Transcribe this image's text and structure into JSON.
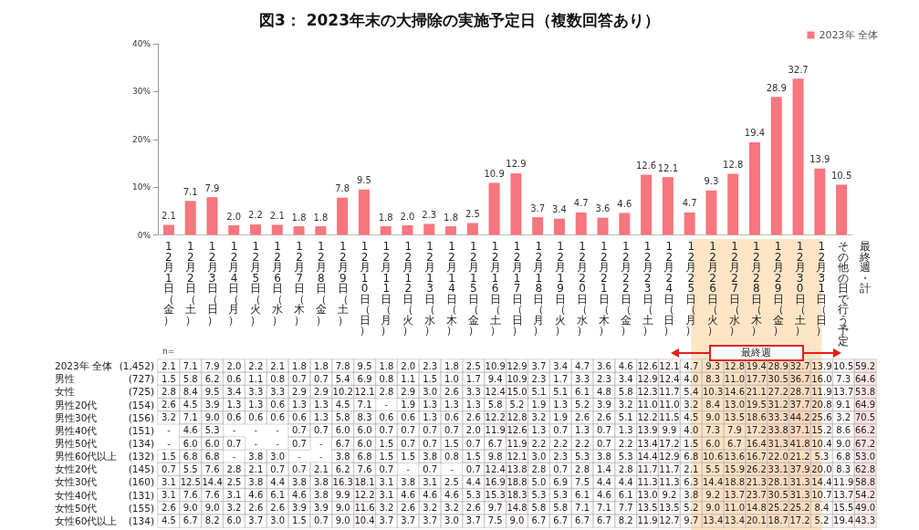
{
  "chart_data": [
    {
      "type": "bar",
      "title": "図3： 2023年末の大掃除の実施予定日（複数回答あり）",
      "categories": [
        null,
        null,
        null,
        null,
        null,
        null,
        null,
        null,
        null,
        null,
        null,
        null,
        null,
        null,
        null,
        null,
        null,
        null,
        null,
        null,
        null,
        null,
        null,
        null,
        null,
        null,
        null,
        null,
        null,
        null,
        null,
        null
      ],
      "series": [
        {
          "name": "2023年 全体",
          "color": "#f8767d",
          "values": [
            2.1,
            7.1,
            7.9,
            2.0,
            2.2,
            2.1,
            1.8,
            1.8,
            7.8,
            9.5,
            1.8,
            2.0,
            2.3,
            1.8,
            2.5,
            10.9,
            12.9,
            3.7,
            3.4,
            4.7,
            3.6,
            4.6,
            12.6,
            12.1,
            4.7,
            9.3,
            12.8,
            19.4,
            28.9,
            32.7,
            13.9,
            10.5
          ],
          "value_labels": [
            "2.1",
            "7.1",
            "7.9",
            "2.0",
            "2.2",
            "2.1",
            "1.8",
            "1.8",
            "7.8",
            "9.5",
            "1.8",
            "2.0",
            "2.3",
            "1.8",
            "2.5",
            "10.9",
            "12.9",
            "3.7",
            "3.4",
            "4.7",
            "3.6",
            "4.6",
            "12.6",
            "12.1",
            "4.7",
            "9.3",
            "12.8",
            "19.4",
            "28.9",
            "32.7",
            "13.9",
            "10.5"
          ]
        }
      ],
      "ylim": [
        0,
        40
      ],
      "yticks": [
        {
          "value": 0,
          "label": "0%"
        },
        {
          "value": 10,
          "label": "10%"
        },
        {
          "value": 20,
          "label": "20%"
        },
        {
          "value": 30,
          "label": "30%"
        },
        {
          "value": 40,
          "label": "40%"
        }
      ],
      "legend": "top right",
      "tick_labels": "y",
      "grid": false
    },
    {
      "type": "heatmap",
      "categories": [
        "12月1日（金）",
        "12月2日（土）",
        "12月3日（日）",
        "12月4日（月）",
        "12月5日（火）",
        "12月6日（水）",
        "12月7日（木）",
        "12月8日（金）",
        "12月9日（土）",
        "12月10日（日）",
        "12月11日（月）",
        "12月12日（火）",
        "12月13日（水）",
        "12月14日（木）",
        "12月15日（金）",
        "12月16日（土）",
        "12月17日（日）",
        "12月18日（月）",
        "12月19日（火）",
        "12月20日（水）",
        "12月21日（木）",
        "12月22日（金）",
        "12月23日（土）",
        "12月24日（日）",
        "12月25日（月）",
        "12月26日（火）",
        "12月27日（水）",
        "12月28日（木）",
        "12月29日（金）",
        "12月30日（土）",
        "12月31日（日）",
        "その他の日で行う予定",
        "最終週・計"
      ],
      "y_categories": [
        "2023年 全体",
        "男性",
        "女性",
        "男性20代",
        "男性30代",
        "男性40代",
        "男性50代",
        "男性60代以上",
        "女性20代",
        "女性30代",
        "女性40代",
        "女性50代",
        "女性60代以上"
      ],
      "y2_categories": [
        "(1,452)",
        "(727)",
        "(725)",
        "(154)",
        "(156)",
        "(151)",
        "(134)",
        "(132)",
        "(145)",
        "(160)",
        "(131)",
        "(155)",
        "(134)"
      ],
      "cells": [
        [
          2.1,
          7.1,
          7.9,
          2.0,
          2.2,
          2.1,
          1.8,
          1.8,
          7.8,
          9.5,
          1.8,
          2.0,
          2.3,
          1.8,
          2.5,
          10.9,
          12.9,
          3.7,
          3.4,
          4.7,
          3.6,
          4.6,
          12.6,
          12.1,
          4.7,
          9.3,
          12.8,
          19.4,
          28.9,
          32.7,
          13.9,
          10.5,
          59.2
        ],
        [
          1.5,
          5.8,
          6.2,
          0.6,
          1.1,
          0.8,
          0.7,
          0.7,
          5.4,
          6.9,
          0.8,
          1.1,
          1.5,
          1.0,
          1.7,
          9.4,
          10.9,
          2.3,
          1.7,
          3.3,
          2.3,
          3.4,
          12.9,
          12.4,
          4.0,
          8.3,
          11.0,
          17.7,
          30.5,
          36.7,
          16.0,
          7.3,
          64.6
        ],
        [
          2.8,
          8.4,
          9.5,
          3.4,
          3.3,
          3.3,
          2.9,
          2.9,
          10.2,
          12.1,
          2.8,
          2.9,
          3.0,
          2.6,
          3.3,
          12.4,
          15.0,
          5.1,
          5.1,
          6.1,
          4.8,
          5.8,
          12.3,
          11.7,
          5.4,
          10.3,
          14.6,
          21.1,
          27.2,
          28.7,
          11.9,
          13.7,
          53.8
        ],
        [
          2.6,
          4.5,
          3.9,
          1.3,
          1.3,
          0.6,
          1.3,
          1.3,
          4.5,
          7.1,
          null,
          1.9,
          1.3,
          1.3,
          1.3,
          5.8,
          5.2,
          1.9,
          1.3,
          5.2,
          3.9,
          3.2,
          11.0,
          11.0,
          3.2,
          8.4,
          13.0,
          19.5,
          31.2,
          37.7,
          20.8,
          9.1,
          64.9
        ],
        [
          3.2,
          7.1,
          9.0,
          0.6,
          0.6,
          0.6,
          0.6,
          1.3,
          5.8,
          8.3,
          0.6,
          0.6,
          1.3,
          0.6,
          2.6,
          12.2,
          12.8,
          3.2,
          1.9,
          2.6,
          2.6,
          5.1,
          12.2,
          11.5,
          4.5,
          9.0,
          13.5,
          18.6,
          33.3,
          44.2,
          25.6,
          3.2,
          70.5
        ],
        [
          null,
          4.6,
          5.3,
          null,
          null,
          null,
          0.7,
          0.7,
          6.0,
          6.0,
          0.7,
          0.7,
          0.7,
          0.7,
          2.0,
          11.9,
          12.6,
          1.3,
          0.7,
          1.3,
          0.7,
          1.3,
          13.9,
          9.9,
          4.0,
          7.3,
          7.9,
          17.2,
          33.8,
          37.1,
          15.2,
          8.6,
          66.2
        ],
        [
          null,
          6.0,
          6.0,
          0.7,
          null,
          null,
          0.7,
          null,
          6.7,
          6.0,
          1.5,
          0.7,
          0.7,
          1.5,
          0.7,
          6.7,
          11.9,
          2.2,
          2.2,
          2.2,
          0.7,
          2.2,
          13.4,
          17.2,
          1.5,
          6.0,
          6.7,
          16.4,
          31.3,
          41.8,
          10.4,
          9.0,
          67.2
        ],
        [
          1.5,
          6.8,
          6.8,
          null,
          3.8,
          3.0,
          null,
          null,
          3.8,
          6.8,
          1.5,
          1.5,
          3.8,
          0.8,
          1.5,
          9.8,
          12.1,
          3.0,
          2.3,
          5.3,
          3.8,
          5.3,
          14.4,
          12.9,
          6.8,
          10.6,
          13.6,
          16.7,
          22.0,
          21.2,
          5.3,
          6.8,
          53.0
        ],
        [
          0.7,
          5.5,
          7.6,
          2.8,
          2.1,
          0.7,
          0.7,
          2.1,
          6.2,
          7.6,
          0.7,
          null,
          0.7,
          null,
          0.7,
          12.4,
          13.8,
          2.8,
          0.7,
          2.8,
          1.4,
          2.8,
          11.7,
          11.7,
          2.1,
          5.5,
          15.9,
          26.2,
          33.1,
          37.9,
          20.0,
          8.3,
          62.8
        ],
        [
          3.1,
          12.5,
          14.4,
          2.5,
          3.8,
          4.4,
          3.8,
          3.8,
          16.3,
          18.1,
          3.1,
          3.8,
          3.1,
          2.5,
          4.4,
          16.9,
          18.8,
          5.0,
          6.9,
          7.5,
          4.4,
          4.4,
          11.3,
          11.3,
          6.3,
          14.4,
          18.8,
          21.3,
          28.1,
          31.3,
          14.4,
          11.9,
          58.8
        ],
        [
          3.1,
          7.6,
          7.6,
          3.1,
          4.6,
          6.1,
          4.6,
          3.8,
          9.9,
          12.2,
          3.1,
          4.6,
          4.6,
          4.6,
          5.3,
          15.3,
          18.3,
          5.3,
          5.3,
          6.1,
          4.6,
          6.1,
          13.0,
          9.2,
          3.8,
          9.2,
          13.7,
          23.7,
          30.5,
          31.3,
          10.7,
          13.7,
          54.2
        ],
        [
          2.6,
          9.0,
          9.0,
          3.2,
          2.6,
          2.6,
          3.9,
          3.9,
          9.0,
          11.6,
          3.2,
          2.6,
          3.2,
          3.2,
          2.6,
          9.7,
          14.8,
          5.8,
          5.8,
          7.1,
          7.1,
          7.7,
          13.5,
          13.5,
          5.2,
          9.0,
          11.0,
          14.8,
          25.2,
          25.2,
          8.4,
          15.5,
          49.0
        ],
        [
          4.5,
          6.7,
          8.2,
          6.0,
          3.7,
          3.0,
          1.5,
          0.7,
          9.0,
          10.4,
          3.7,
          3.7,
          3.7,
          3.0,
          3.7,
          7.5,
          9.0,
          6.7,
          6.7,
          6.7,
          6.7,
          8.2,
          11.9,
          12.7,
          9.7,
          13.4,
          13.4,
          20.1,
          18.7,
          17.2,
          5.2,
          19.4,
          43.3
        ]
      ],
      "cell_labels": [
        [
          "2.1",
          "7.1",
          "7.9",
          "2.0",
          "2.2",
          "2.1",
          "1.8",
          "1.8",
          "7.8",
          "9.5",
          "1.8",
          "2.0",
          "2.3",
          "1.8",
          "2.5",
          "10.9",
          "12.9",
          "3.7",
          "3.4",
          "4.7",
          "3.6",
          "4.6",
          "12.6",
          "12.1",
          "4.7",
          "9.3",
          "12.8",
          "19.4",
          "28.9",
          "32.7",
          "13.9",
          "10.5",
          "59.2"
        ],
        [
          "1.5",
          "5.8",
          "6.2",
          "0.6",
          "1.1",
          "0.8",
          "0.7",
          "0.7",
          "5.4",
          "6.9",
          "0.8",
          "1.1",
          "1.5",
          "1.0",
          "1.7",
          "9.4",
          "10.9",
          "2.3",
          "1.7",
          "3.3",
          "2.3",
          "3.4",
          "12.9",
          "12.4",
          "4.0",
          "8.3",
          "11.0",
          "17.7",
          "30.5",
          "36.7",
          "16.0",
          "7.3",
          "64.6"
        ],
        [
          "2.8",
          "8.4",
          "9.5",
          "3.4",
          "3.3",
          "3.3",
          "2.9",
          "2.9",
          "10.2",
          "12.1",
          "2.8",
          "2.9",
          "3.0",
          "2.6",
          "3.3",
          "12.4",
          "15.0",
          "5.1",
          "5.1",
          "6.1",
          "4.8",
          "5.8",
          "12.3",
          "11.7",
          "5.4",
          "10.3",
          "14.6",
          "21.1",
          "27.2",
          "28.7",
          "11.9",
          "13.7",
          "53.8"
        ],
        [
          "2.6",
          "4.5",
          "3.9",
          "1.3",
          "1.3",
          "0.6",
          "1.3",
          "1.3",
          "4.5",
          "7.1",
          "-",
          "1.9",
          "1.3",
          "1.3",
          "1.3",
          "5.8",
          "5.2",
          "1.9",
          "1.3",
          "5.2",
          "3.9",
          "3.2",
          "11.0",
          "11.0",
          "3.2",
          "8.4",
          "13.0",
          "19.5",
          "31.2",
          "37.7",
          "20.8",
          "9.1",
          "64.9"
        ],
        [
          "3.2",
          "7.1",
          "9.0",
          "0.6",
          "0.6",
          "0.6",
          "0.6",
          "1.3",
          "5.8",
          "8.3",
          "0.6",
          "0.6",
          "1.3",
          "0.6",
          "2.6",
          "12.2",
          "12.8",
          "3.2",
          "1.9",
          "2.6",
          "2.6",
          "5.1",
          "12.2",
          "11.5",
          "4.5",
          "9.0",
          "13.5",
          "18.6",
          "33.3",
          "44.2",
          "25.6",
          "3.2",
          "70.5"
        ],
        [
          "-",
          "4.6",
          "5.3",
          "-",
          "-",
          "-",
          "0.7",
          "0.7",
          "6.0",
          "6.0",
          "0.7",
          "0.7",
          "0.7",
          "0.7",
          "2.0",
          "11.9",
          "12.6",
          "1.3",
          "0.7",
          "1.3",
          "0.7",
          "1.3",
          "13.9",
          "9.9",
          "4.0",
          "7.3",
          "7.9",
          "17.2",
          "33.8",
          "37.1",
          "15.2",
          "8.6",
          "66.2"
        ],
        [
          "-",
          "6.0",
          "6.0",
          "0.7",
          "-",
          "-",
          "0.7",
          "-",
          "6.7",
          "6.0",
          "1.5",
          "0.7",
          "0.7",
          "1.5",
          "0.7",
          "6.7",
          "11.9",
          "2.2",
          "2.2",
          "2.2",
          "0.7",
          "2.2",
          "13.4",
          "17.2",
          "1.5",
          "6.0",
          "6.7",
          "16.4",
          "31.3",
          "41.8",
          "10.4",
          "9.0",
          "67.2"
        ],
        [
          "1.5",
          "6.8",
          "6.8",
          "-",
          "3.8",
          "3.0",
          "-",
          "-",
          "3.8",
          "6.8",
          "1.5",
          "1.5",
          "3.8",
          "0.8",
          "1.5",
          "9.8",
          "12.1",
          "3.0",
          "2.3",
          "5.3",
          "3.8",
          "5.3",
          "14.4",
          "12.9",
          "6.8",
          "10.6",
          "13.6",
          "16.7",
          "22.0",
          "21.2",
          "5.3",
          "6.8",
          "53.0"
        ],
        [
          "0.7",
          "5.5",
          "7.6",
          "2.8",
          "2.1",
          "0.7",
          "0.7",
          "2.1",
          "6.2",
          "7.6",
          "0.7",
          "-",
          "0.7",
          "-",
          "0.7",
          "12.4",
          "13.8",
          "2.8",
          "0.7",
          "2.8",
          "1.4",
          "2.8",
          "11.7",
          "11.7",
          "2.1",
          "5.5",
          "15.9",
          "26.2",
          "33.1",
          "37.9",
          "20.0",
          "8.3",
          "62.8"
        ],
        [
          "3.1",
          "12.5",
          "14.4",
          "2.5",
          "3.8",
          "4.4",
          "3.8",
          "3.8",
          "16.3",
          "18.1",
          "3.1",
          "3.8",
          "3.1",
          "2.5",
          "4.4",
          "16.9",
          "18.8",
          "5.0",
          "6.9",
          "7.5",
          "4.4",
          "4.4",
          "11.3",
          "11.3",
          "6.3",
          "14.4",
          "18.8",
          "21.3",
          "28.1",
          "31.3",
          "14.4",
          "11.9",
          "58.8"
        ],
        [
          "3.1",
          "7.6",
          "7.6",
          "3.1",
          "4.6",
          "6.1",
          "4.6",
          "3.8",
          "9.9",
          "12.2",
          "3.1",
          "4.6",
          "4.6",
          "4.6",
          "5.3",
          "15.3",
          "18.3",
          "5.3",
          "5.3",
          "6.1",
          "4.6",
          "6.1",
          "13.0",
          "9.2",
          "3.8",
          "9.2",
          "13.7",
          "23.7",
          "30.5",
          "31.3",
          "10.7",
          "13.7",
          "54.2"
        ],
        [
          "2.6",
          "9.0",
          "9.0",
          "3.2",
          "2.6",
          "2.6",
          "3.9",
          "3.9",
          "9.0",
          "11.6",
          "3.2",
          "2.6",
          "3.2",
          "3.2",
          "2.6",
          "9.7",
          "14.8",
          "5.8",
          "5.8",
          "7.1",
          "7.1",
          "7.7",
          "13.5",
          "13.5",
          "5.2",
          "9.0",
          "11.0",
          "14.8",
          "25.2",
          "25.2",
          "8.4",
          "15.5",
          "49.0"
        ],
        [
          "4.5",
          "6.7",
          "8.2",
          "6.0",
          "3.7",
          "3.0",
          "1.5",
          "0.7",
          "9.0",
          "10.4",
          "3.7",
          "3.7",
          "3.7",
          "3.0",
          "3.7",
          "7.5",
          "9.0",
          "6.7",
          "6.7",
          "6.7",
          "6.7",
          "8.2",
          "11.9",
          "12.7",
          "9.7",
          "13.4",
          "13.4",
          "20.1",
          "18.7",
          "17.2",
          "5.2",
          "19.4",
          "43.3"
        ]
      ],
      "bands": [
        {
          "axis": "x",
          "from": "12月25日（月）",
          "to": "12月31日（日）",
          "label": "最終週",
          "color": "#fde5c6"
        }
      ],
      "annotations": [
        "n="
      ]
    }
  ]
}
